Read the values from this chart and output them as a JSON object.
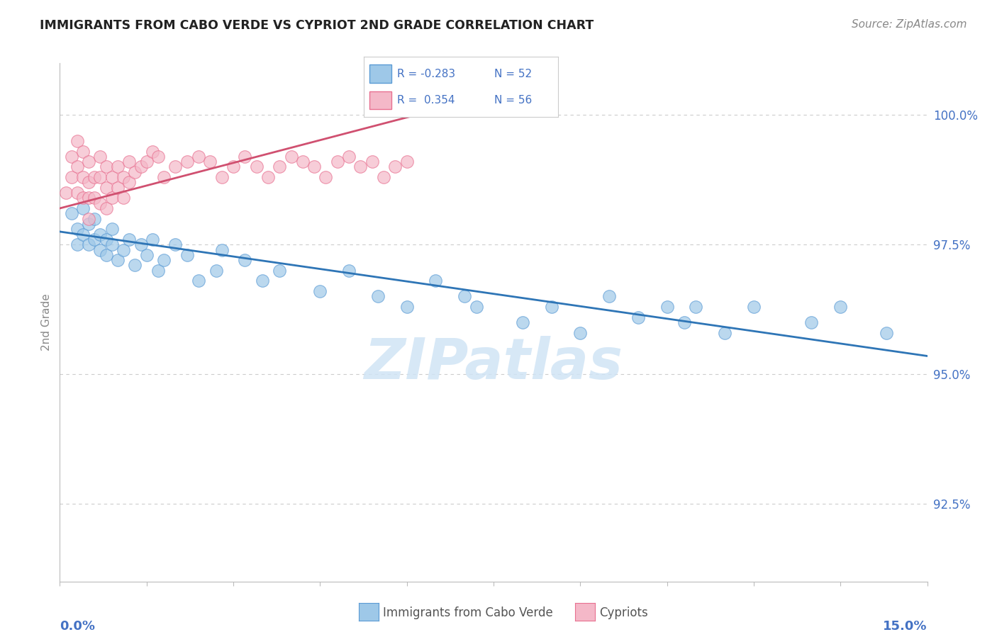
{
  "title": "IMMIGRANTS FROM CABO VERDE VS CYPRIOT 2ND GRADE CORRELATION CHART",
  "source": "Source: ZipAtlas.com",
  "ylabel": "2nd Grade",
  "ytick_labels": [
    "92.5%",
    "95.0%",
    "97.5%",
    "100.0%"
  ],
  "ytick_values": [
    0.925,
    0.95,
    0.975,
    1.0
  ],
  "xlim": [
    0.0,
    0.15
  ],
  "ylim": [
    0.91,
    1.01
  ],
  "blue_color": "#9ec8e8",
  "blue_edge_color": "#5b9bd5",
  "blue_line_color": "#2e75b6",
  "pink_color": "#f4b8c8",
  "pink_edge_color": "#e87090",
  "pink_line_color": "#d05070",
  "axis_label_color": "#4472c4",
  "title_color": "#222222",
  "source_color": "#888888",
  "grid_color": "#cccccc",
  "watermark_color": "#d0e4f5",
  "legend_r_blue": "R = -0.283",
  "legend_n_blue": "N = 52",
  "legend_r_pink": "R =  0.354",
  "legend_n_pink": "N = 56",
  "blue_x": [
    0.002,
    0.003,
    0.003,
    0.004,
    0.004,
    0.005,
    0.005,
    0.006,
    0.006,
    0.007,
    0.007,
    0.008,
    0.008,
    0.009,
    0.009,
    0.01,
    0.011,
    0.012,
    0.013,
    0.014,
    0.015,
    0.016,
    0.017,
    0.018,
    0.02,
    0.022,
    0.024,
    0.027,
    0.028,
    0.032,
    0.035,
    0.038,
    0.045,
    0.05,
    0.055,
    0.06,
    0.065,
    0.07,
    0.072,
    0.08,
    0.085,
    0.09,
    0.095,
    0.1,
    0.105,
    0.108,
    0.11,
    0.115,
    0.12,
    0.13,
    0.135,
    0.143
  ],
  "blue_y": [
    0.981,
    0.978,
    0.975,
    0.982,
    0.977,
    0.975,
    0.979,
    0.976,
    0.98,
    0.974,
    0.977,
    0.973,
    0.976,
    0.975,
    0.978,
    0.972,
    0.974,
    0.976,
    0.971,
    0.975,
    0.973,
    0.976,
    0.97,
    0.972,
    0.975,
    0.973,
    0.968,
    0.97,
    0.974,
    0.972,
    0.968,
    0.97,
    0.966,
    0.97,
    0.965,
    0.963,
    0.968,
    0.965,
    0.963,
    0.96,
    0.963,
    0.958,
    0.965,
    0.961,
    0.963,
    0.96,
    0.963,
    0.958,
    0.963,
    0.96,
    0.963,
    0.958
  ],
  "pink_x": [
    0.001,
    0.002,
    0.002,
    0.003,
    0.003,
    0.003,
    0.004,
    0.004,
    0.004,
    0.005,
    0.005,
    0.005,
    0.005,
    0.006,
    0.006,
    0.007,
    0.007,
    0.007,
    0.008,
    0.008,
    0.008,
    0.009,
    0.009,
    0.01,
    0.01,
    0.011,
    0.011,
    0.012,
    0.012,
    0.013,
    0.014,
    0.015,
    0.016,
    0.017,
    0.018,
    0.02,
    0.022,
    0.024,
    0.026,
    0.028,
    0.03,
    0.032,
    0.034,
    0.036,
    0.038,
    0.04,
    0.042,
    0.044,
    0.046,
    0.048,
    0.05,
    0.052,
    0.054,
    0.056,
    0.058,
    0.06
  ],
  "pink_y": [
    0.985,
    0.992,
    0.988,
    0.995,
    0.99,
    0.985,
    0.993,
    0.988,
    0.984,
    0.991,
    0.987,
    0.984,
    0.98,
    0.988,
    0.984,
    0.992,
    0.988,
    0.983,
    0.99,
    0.986,
    0.982,
    0.988,
    0.984,
    0.99,
    0.986,
    0.988,
    0.984,
    0.991,
    0.987,
    0.989,
    0.99,
    0.991,
    0.993,
    0.992,
    0.988,
    0.99,
    0.991,
    0.992,
    0.991,
    0.988,
    0.99,
    0.992,
    0.99,
    0.988,
    0.99,
    0.992,
    0.991,
    0.99,
    0.988,
    0.991,
    0.992,
    0.99,
    0.991,
    0.988,
    0.99,
    0.991
  ],
  "blue_line_x": [
    0.0,
    0.15
  ],
  "blue_line_y": [
    0.9775,
    0.9535
  ],
  "pink_line_x": [
    0.0,
    0.065
  ],
  "pink_line_y": [
    0.982,
    1.001
  ]
}
